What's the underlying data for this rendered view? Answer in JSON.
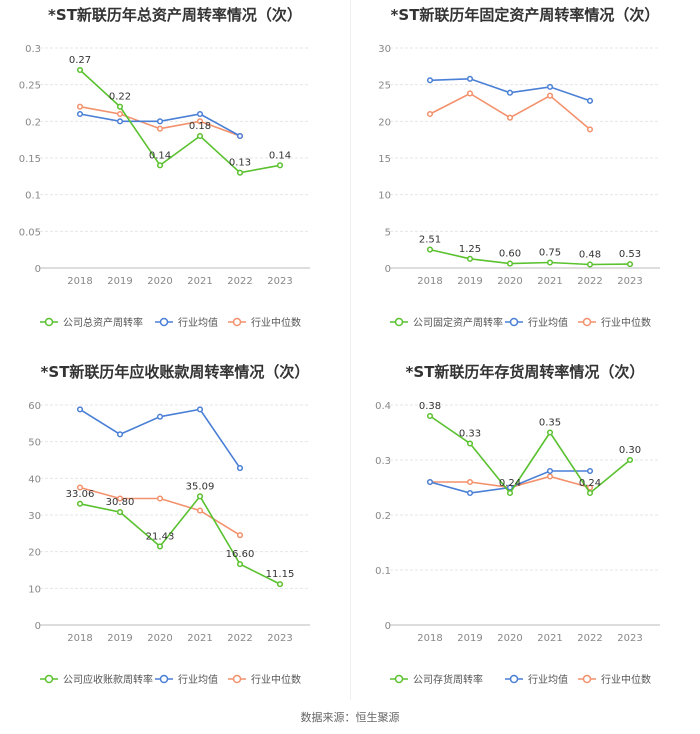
{
  "colors": {
    "company": "#5ac12f",
    "industry_avg": "#4a7fd6",
    "industry_median": "#f3916c",
    "grid": "#e6e6e6",
    "axis_text": "#888888"
  },
  "legend_labels": {
    "industry_avg": "行业均值",
    "industry_median": "行业中位数"
  },
  "source_label": "数据来源：恒生聚源",
  "chart_data": [
    {
      "type": "line",
      "title": "*ST新联历年总资产周转率情况（次）",
      "categories": [
        "2018",
        "2019",
        "2020",
        "2021",
        "2022",
        "2023"
      ],
      "ylim": [
        0,
        0.3
      ],
      "yticks": [
        "0",
        "0.05",
        "0.1",
        "0.15",
        "0.2",
        "0.25",
        "0.3"
      ],
      "grid": true,
      "legend_position": "bottom",
      "series": [
        {
          "name": "公司总资产周转率",
          "key": "company",
          "values": [
            0.27,
            0.22,
            0.14,
            0.18,
            0.13,
            0.14
          ],
          "labels": [
            "0.27",
            "0.22",
            "0.14",
            "0.18",
            "0.13",
            "0.14"
          ]
        },
        {
          "name": "行业均值",
          "key": "industry_avg",
          "values": [
            0.21,
            0.2,
            0.2,
            0.21,
            0.18,
            null
          ]
        },
        {
          "name": "行业中位数",
          "key": "industry_median",
          "values": [
            0.22,
            0.21,
            0.19,
            0.2,
            0.18,
            null
          ]
        }
      ]
    },
    {
      "type": "line",
      "title": "*ST新联历年固定资产周转率情况（次）",
      "categories": [
        "2018",
        "2019",
        "2020",
        "2021",
        "2022",
        "2023"
      ],
      "ylim": [
        0,
        30
      ],
      "yticks": [
        "0",
        "5",
        "10",
        "15",
        "20",
        "25",
        "30"
      ],
      "grid": true,
      "legend_position": "bottom",
      "series": [
        {
          "name": "公司固定资产周转率",
          "key": "company",
          "values": [
            2.51,
            1.25,
            0.6,
            0.75,
            0.48,
            0.53
          ],
          "labels": [
            "2.51",
            "1.25",
            "0.60",
            "0.75",
            "0.48",
            "0.53"
          ]
        },
        {
          "name": "行业均值",
          "key": "industry_avg",
          "values": [
            25.6,
            25.8,
            23.9,
            24.7,
            22.8,
            null
          ]
        },
        {
          "name": "行业中位数",
          "key": "industry_median",
          "values": [
            21.0,
            23.8,
            20.5,
            23.5,
            18.9,
            null
          ]
        }
      ]
    },
    {
      "type": "line",
      "title": "*ST新联历年应收账款周转率情况（次）",
      "categories": [
        "2018",
        "2019",
        "2020",
        "2021",
        "2022",
        "2023"
      ],
      "ylim": [
        0,
        60
      ],
      "yticks": [
        "0",
        "10",
        "20",
        "30",
        "40",
        "50",
        "60"
      ],
      "grid": true,
      "legend_position": "bottom",
      "series": [
        {
          "name": "公司应收账款周转率",
          "key": "company",
          "values": [
            33.06,
            30.8,
            21.43,
            35.09,
            16.6,
            11.15
          ],
          "labels": [
            "33.06",
            "30.80",
            "21.43",
            "35.09",
            "16.60",
            "11.15"
          ]
        },
        {
          "name": "行业均值",
          "key": "industry_avg",
          "values": [
            58.8,
            52.0,
            56.8,
            58.8,
            42.8,
            null
          ]
        },
        {
          "name": "行业中位数",
          "key": "industry_median",
          "values": [
            37.5,
            34.5,
            34.5,
            31.2,
            24.5,
            null
          ]
        }
      ]
    },
    {
      "type": "line",
      "title": "*ST新联历年存货周转率情况（次）",
      "categories": [
        "2018",
        "2019",
        "2020",
        "2021",
        "2022",
        "2023"
      ],
      "ylim": [
        0,
        0.4
      ],
      "yticks": [
        "0",
        "0.1",
        "0.2",
        "0.3",
        "0.4"
      ],
      "grid": true,
      "legend_position": "bottom",
      "series": [
        {
          "name": "公司存货周转率",
          "key": "company",
          "values": [
            0.38,
            0.33,
            0.24,
            0.35,
            0.24,
            0.3
          ],
          "labels": [
            "0.38",
            "0.33",
            "0.24",
            "0.35",
            "0.24",
            "0.30"
          ]
        },
        {
          "name": "行业均值",
          "key": "industry_avg",
          "values": [
            0.26,
            0.24,
            0.25,
            0.28,
            0.28,
            null
          ]
        },
        {
          "name": "行业中位数",
          "key": "industry_median",
          "values": [
            0.26,
            0.26,
            0.25,
            0.27,
            0.25,
            null
          ]
        }
      ]
    }
  ]
}
